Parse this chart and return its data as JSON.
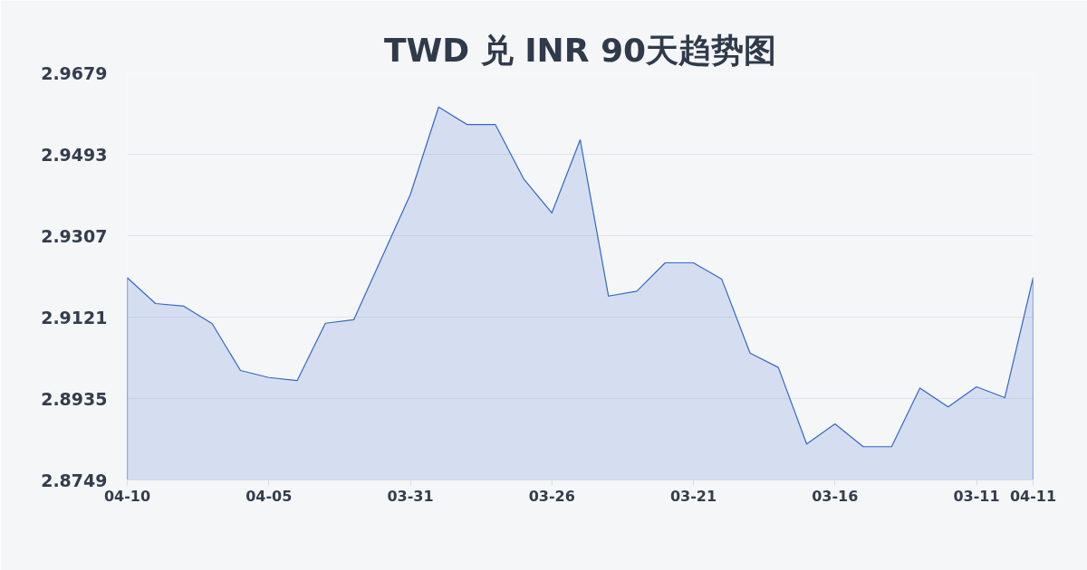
{
  "chart_data": {
    "type": "area",
    "title": "TWD 兑 INR 90天趋势图",
    "categories": [
      "04-10",
      null,
      null,
      null,
      null,
      "04-05",
      null,
      null,
      null,
      null,
      "03-31",
      null,
      null,
      null,
      null,
      "03-26",
      null,
      null,
      null,
      null,
      "03-21",
      null,
      null,
      null,
      null,
      "03-16",
      null,
      null,
      null,
      null,
      "03-11",
      null,
      "04-11"
    ],
    "series": [
      {
        "color": "#3366cc",
        "values": [
          2.9211,
          2.9152,
          2.9146,
          2.9106,
          2.8999,
          2.8983,
          2.8976,
          2.9107,
          2.9115,
          2.9258,
          2.9401,
          2.9601,
          2.9561,
          2.9561,
          2.9437,
          2.9359,
          2.9526,
          2.9169,
          2.918,
          2.9245,
          2.9245,
          2.9208,
          2.9039,
          2.9006,
          2.8831,
          2.8877,
          2.8825,
          2.8825,
          2.8959,
          2.8916,
          2.8962,
          2.8937,
          2.9211
        ]
      }
    ],
    "ylim": [
      2.8749,
      2.9679
    ],
    "yticks": [
      2.8749,
      2.8935,
      2.9121,
      2.9307,
      2.9493,
      2.9679
    ],
    "grid": "y"
  }
}
